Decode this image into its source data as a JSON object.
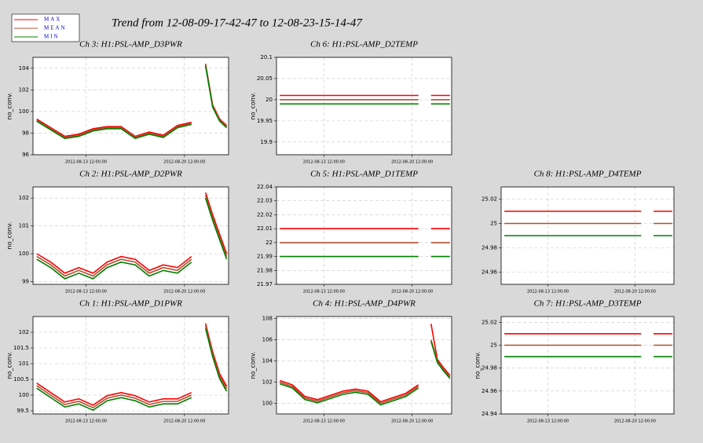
{
  "title": "Trend from 12-08-09-17-42-47 to 12-08-23-15-14-47",
  "chart_data": [
    {
      "type": "line",
      "title": "Ch 3: H1:PSL-AMP_D3PWR",
      "ylabel": "no_conv.",
      "x": [
        "2012-08-10 00:00:00",
        "2012-08-11 00:00:00",
        "2012-08-12 00:00:00",
        "2012-08-13 00:00:00",
        "2012-08-14 00:00:00",
        "2012-08-15 00:00:00",
        "2012-08-16 00:00:00",
        "2012-08-17 00:00:00",
        "2012-08-18 00:00:00",
        "2012-08-19 00:00:00",
        "2012-08-20 00:00:00",
        "2012-08-21 00:00:00",
        "2012-08-21 12:00:00",
        "2012-08-22 00:00:00",
        "2012-08-22 12:00:00",
        "2012-08-23 00:00:00",
        "2012-08-23 12:00:00"
      ],
      "xlim": [
        "2012-08-09 17:42:47",
        "2012-08-23 15:14:47"
      ],
      "xticks": [
        "2012-08-13 12:00:00",
        "2012-08-20 12:00:00"
      ],
      "ylim": [
        96,
        105
      ],
      "yticks": [
        96,
        98,
        100,
        102,
        104
      ],
      "series": [
        {
          "name": "MAX",
          "color": "#ff0000",
          "values": [
            99.3,
            98.5,
            97.7,
            97.9,
            98.4,
            98.6,
            98.6,
            97.7,
            98.1,
            97.8,
            98.7,
            99.0,
            null,
            104.4,
            100.6,
            99.3,
            98.7
          ]
        },
        {
          "name": "MEAN",
          "color": "#b05030",
          "values": [
            99.2,
            98.4,
            97.6,
            97.8,
            98.3,
            98.5,
            98.5,
            97.6,
            98.0,
            97.7,
            98.6,
            98.9,
            null,
            104.3,
            100.5,
            99.2,
            98.6
          ]
        },
        {
          "name": "MIN",
          "color": "#008000",
          "values": [
            99.1,
            98.3,
            97.5,
            97.7,
            98.2,
            98.4,
            98.4,
            97.5,
            97.9,
            97.6,
            98.5,
            98.8,
            null,
            104.2,
            100.4,
            99.1,
            98.5
          ]
        }
      ]
    },
    {
      "type": "line",
      "title": "Ch 6: H1:PSL-AMP_D2TEMP",
      "ylabel": "no_conv.",
      "x": [
        "2012-08-10 00:00:00",
        "2012-08-11 00:00:00",
        "2012-08-12 00:00:00",
        "2012-08-13 00:00:00",
        "2012-08-14 00:00:00",
        "2012-08-15 00:00:00",
        "2012-08-16 00:00:00",
        "2012-08-17 00:00:00",
        "2012-08-18 00:00:00",
        "2012-08-19 00:00:00",
        "2012-08-20 00:00:00",
        "2012-08-21 00:00:00",
        "2012-08-21 12:00:00",
        "2012-08-22 00:00:00",
        "2012-08-22 12:00:00",
        "2012-08-23 00:00:00",
        "2012-08-23 12:00:00"
      ],
      "xlim": [
        "2012-08-09 17:42:47",
        "2012-08-23 15:14:47"
      ],
      "xticks": [
        "2012-08-13 12:00:00",
        "2012-08-20 12:00:00"
      ],
      "ylim": [
        19.87,
        20.1
      ],
      "yticks": [
        19.9,
        19.95,
        20,
        20.05,
        20.1
      ],
      "series": [
        {
          "name": "MAX",
          "color": "#ff0000",
          "values": [
            20.01,
            20.01,
            20.01,
            20.01,
            20.01,
            20.01,
            20.01,
            20.01,
            20.01,
            20.01,
            20.01,
            20.01,
            null,
            20.01,
            20.01,
            20.01,
            20.01
          ]
        },
        {
          "name": "MEAN",
          "color": "#b05030",
          "values": [
            20,
            20,
            20,
            20,
            20,
            20,
            20,
            20,
            20,
            20,
            20,
            20,
            null,
            20,
            20,
            20,
            20
          ]
        },
        {
          "name": "MIN",
          "color": "#008000",
          "values": [
            19.99,
            19.99,
            19.99,
            19.99,
            19.99,
            19.99,
            19.99,
            19.99,
            19.99,
            19.99,
            19.99,
            19.99,
            null,
            19.99,
            19.99,
            19.99,
            19.99
          ]
        }
      ]
    },
    {
      "type": "line",
      "title": "Ch 2: H1:PSL-AMP_D2PWR",
      "ylabel": "no_conv.",
      "x": [
        "2012-08-10 00:00:00",
        "2012-08-11 00:00:00",
        "2012-08-12 00:00:00",
        "2012-08-13 00:00:00",
        "2012-08-14 00:00:00",
        "2012-08-15 00:00:00",
        "2012-08-16 00:00:00",
        "2012-08-17 00:00:00",
        "2012-08-18 00:00:00",
        "2012-08-19 00:00:00",
        "2012-08-20 00:00:00",
        "2012-08-21 00:00:00",
        "2012-08-21 12:00:00",
        "2012-08-22 00:00:00",
        "2012-08-22 12:00:00",
        "2012-08-23 00:00:00",
        "2012-08-23 12:00:00"
      ],
      "xlim": [
        "2012-08-09 17:42:47",
        "2012-08-23 15:14:47"
      ],
      "xticks": [
        "2012-08-13 12:00:00",
        "2012-08-20 12:00:00"
      ],
      "ylim": [
        98.9,
        102.4
      ],
      "yticks": [
        99,
        100,
        101,
        102
      ],
      "series": [
        {
          "name": "MAX",
          "color": "#ff0000",
          "values": [
            100.0,
            99.7,
            99.3,
            99.5,
            99.3,
            99.7,
            99.9,
            99.8,
            99.4,
            99.6,
            99.5,
            99.9,
            null,
            102.2,
            101.4,
            100.7,
            100.0
          ]
        },
        {
          "name": "MEAN",
          "color": "#b05030",
          "values": [
            99.9,
            99.6,
            99.2,
            99.4,
            99.2,
            99.6,
            99.8,
            99.7,
            99.3,
            99.5,
            99.4,
            99.8,
            null,
            102.1,
            101.3,
            100.6,
            99.9
          ]
        },
        {
          "name": "MIN",
          "color": "#008000",
          "values": [
            99.8,
            99.5,
            99.1,
            99.3,
            99.1,
            99.5,
            99.7,
            99.6,
            99.2,
            99.4,
            99.3,
            99.7,
            null,
            102.0,
            101.2,
            100.5,
            99.8
          ]
        }
      ]
    },
    {
      "type": "line",
      "title": "Ch 5: H1:PSL-AMP_D1TEMP",
      "x": [
        "2012-08-10 00:00:00",
        "2012-08-11 00:00:00",
        "2012-08-12 00:00:00",
        "2012-08-13 00:00:00",
        "2012-08-14 00:00:00",
        "2012-08-15 00:00:00",
        "2012-08-16 00:00:00",
        "2012-08-17 00:00:00",
        "2012-08-18 00:00:00",
        "2012-08-19 00:00:00",
        "2012-08-20 00:00:00",
        "2012-08-21 00:00:00",
        "2012-08-21 12:00:00",
        "2012-08-22 00:00:00",
        "2012-08-22 12:00:00",
        "2012-08-23 00:00:00",
        "2012-08-23 12:00:00"
      ],
      "xlim": [
        "2012-08-09 17:42:47",
        "2012-08-23 15:14:47"
      ],
      "xticks": [
        "2012-08-13 12:00:00",
        "2012-08-20 12:00:00"
      ],
      "ylim": [
        21.97,
        22.04
      ],
      "yticks": [
        21.97,
        21.98,
        21.99,
        22,
        22.01,
        22.02,
        22.03,
        22.04
      ],
      "series": [
        {
          "name": "MAX",
          "color": "#ff0000",
          "values": [
            22.01,
            22.01,
            22.01,
            22.01,
            22.01,
            22.01,
            22.01,
            22.01,
            22.01,
            22.01,
            22.01,
            22.01,
            null,
            22.01,
            22.01,
            22.01,
            22.01
          ]
        },
        {
          "name": "MEAN",
          "color": "#b05030",
          "values": [
            22,
            22,
            22,
            22,
            22,
            22,
            22,
            22,
            22,
            22,
            22,
            22,
            null,
            22,
            22,
            22,
            22
          ]
        },
        {
          "name": "MIN",
          "color": "#008000",
          "values": [
            21.99,
            21.99,
            21.99,
            21.99,
            21.99,
            21.99,
            21.99,
            21.99,
            21.99,
            21.99,
            21.99,
            21.99,
            null,
            21.99,
            21.99,
            21.99,
            21.99
          ]
        }
      ]
    },
    {
      "type": "line",
      "title": "Ch 8: H1:PSL-AMP_D4TEMP",
      "x": [
        "2012-08-10 00:00:00",
        "2012-08-11 00:00:00",
        "2012-08-12 00:00:00",
        "2012-08-13 00:00:00",
        "2012-08-14 00:00:00",
        "2012-08-15 00:00:00",
        "2012-08-16 00:00:00",
        "2012-08-17 00:00:00",
        "2012-08-18 00:00:00",
        "2012-08-19 00:00:00",
        "2012-08-20 00:00:00",
        "2012-08-21 00:00:00",
        "2012-08-21 12:00:00",
        "2012-08-22 00:00:00",
        "2012-08-22 12:00:00",
        "2012-08-23 00:00:00",
        "2012-08-23 12:00:00"
      ],
      "xlim": [
        "2012-08-09 17:42:47",
        "2012-08-23 15:14:47"
      ],
      "xticks": [
        "2012-08-13 12:00:00",
        "2012-08-20 12:00:00"
      ],
      "ylim": [
        24.95,
        25.03
      ],
      "yticks": [
        24.96,
        24.98,
        25,
        25.02
      ],
      "series": [
        {
          "name": "MAX",
          "color": "#ff0000",
          "values": [
            25.01,
            25.01,
            25.01,
            25.01,
            25.01,
            25.01,
            25.01,
            25.01,
            25.01,
            25.01,
            25.01,
            25.01,
            null,
            25.01,
            25.01,
            25.01,
            25.01
          ]
        },
        {
          "name": "MEAN",
          "color": "#b05030",
          "values": [
            25,
            25,
            25,
            25,
            25,
            25,
            25,
            25,
            25,
            25,
            25,
            25,
            null,
            25,
            25,
            25,
            25
          ]
        },
        {
          "name": "MIN",
          "color": "#008000",
          "values": [
            24.99,
            24.99,
            24.99,
            24.99,
            24.99,
            24.99,
            24.99,
            24.99,
            24.99,
            24.99,
            24.99,
            24.99,
            null,
            24.99,
            24.99,
            24.99,
            24.99
          ]
        }
      ]
    },
    {
      "type": "line",
      "title": "Ch 1: H1:PSL-AMP_D1PWR",
      "ylabel": "no_conv.",
      "x": [
        "2012-08-10 00:00:00",
        "2012-08-11 00:00:00",
        "2012-08-12 00:00:00",
        "2012-08-13 00:00:00",
        "2012-08-14 00:00:00",
        "2012-08-15 00:00:00",
        "2012-08-16 00:00:00",
        "2012-08-17 00:00:00",
        "2012-08-18 00:00:00",
        "2012-08-19 00:00:00",
        "2012-08-20 00:00:00",
        "2012-08-21 00:00:00",
        "2012-08-21 12:00:00",
        "2012-08-22 00:00:00",
        "2012-08-22 12:00:00",
        "2012-08-23 00:00:00",
        "2012-08-23 12:00:00"
      ],
      "xlim": [
        "2012-08-09 17:42:47",
        "2012-08-23 15:14:47"
      ],
      "xticks": [
        "2012-08-13 12:00:00",
        "2012-08-20 12:00:00"
      ],
      "ylim": [
        99.4,
        102.5
      ],
      "yticks": [
        99.5,
        100,
        100.5,
        101,
        101.5,
        102
      ],
      "series": [
        {
          "name": "MAX",
          "color": "#ff0000",
          "values": [
            100.38,
            100.08,
            99.78,
            99.88,
            99.68,
            99.98,
            100.08,
            99.98,
            99.78,
            99.88,
            99.88,
            100.08,
            null,
            102.28,
            101.38,
            100.68,
            100.28
          ]
        },
        {
          "name": "MEAN",
          "color": "#b05030",
          "values": [
            100.3,
            100.0,
            99.7,
            99.8,
            99.6,
            99.9,
            100.0,
            99.9,
            99.7,
            99.8,
            99.8,
            100.0,
            null,
            102.2,
            101.3,
            100.6,
            100.2
          ]
        },
        {
          "name": "MIN",
          "color": "#008000",
          "values": [
            100.22,
            99.92,
            99.62,
            99.72,
            99.52,
            99.82,
            99.92,
            99.82,
            99.62,
            99.72,
            99.72,
            99.92,
            null,
            102.12,
            101.22,
            100.52,
            100.12
          ]
        }
      ]
    },
    {
      "type": "line",
      "title": "Ch 4: H1:PSL-AMP_D4PWR",
      "ylabel": "no_conv.",
      "x": [
        "2012-08-10 00:00:00",
        "2012-08-11 00:00:00",
        "2012-08-12 00:00:00",
        "2012-08-13 00:00:00",
        "2012-08-14 00:00:00",
        "2012-08-15 00:00:00",
        "2012-08-16 00:00:00",
        "2012-08-17 00:00:00",
        "2012-08-18 00:00:00",
        "2012-08-19 00:00:00",
        "2012-08-20 00:00:00",
        "2012-08-21 00:00:00",
        "2012-08-21 12:00:00",
        "2012-08-22 00:00:00",
        "2012-08-22 12:00:00",
        "2012-08-23 00:00:00",
        "2012-08-23 12:00:00"
      ],
      "xlim": [
        "2012-08-09 17:42:47",
        "2012-08-23 15:14:47"
      ],
      "xticks": [
        "2012-08-13 12:00:00",
        "2012-08-20 12:00:00"
      ],
      "ylim": [
        99,
        108.2
      ],
      "yticks": [
        100,
        102,
        104,
        106,
        108
      ],
      "series": [
        {
          "name": "MAX",
          "color": "#ff0000",
          "values": [
            102.15,
            101.75,
            100.65,
            100.35,
            100.75,
            101.15,
            101.35,
            101.15,
            100.15,
            100.55,
            100.95,
            101.75,
            null,
            107.5,
            104.15,
            103.35,
            102.65
          ]
        },
        {
          "name": "MEAN",
          "color": "#b05030",
          "values": [
            102.0,
            101.6,
            100.5,
            100.2,
            100.6,
            101.0,
            101.2,
            101.0,
            100.0,
            100.4,
            100.8,
            101.6,
            null,
            106.0,
            104.0,
            103.2,
            102.5
          ]
        },
        {
          "name": "MIN",
          "color": "#008000",
          "values": [
            101.85,
            101.45,
            100.35,
            100.05,
            100.45,
            100.85,
            101.05,
            100.85,
            99.85,
            100.25,
            100.65,
            101.45,
            null,
            105.85,
            103.85,
            103.05,
            102.35
          ]
        }
      ]
    },
    {
      "type": "line",
      "title": "Ch 7: H1:PSL-AMP_D3TEMP",
      "ylabel": "no_conv.",
      "x": [
        "2012-08-10 00:00:00",
        "2012-08-11 00:00:00",
        "2012-08-12 00:00:00",
        "2012-08-13 00:00:00",
        "2012-08-14 00:00:00",
        "2012-08-15 00:00:00",
        "2012-08-16 00:00:00",
        "2012-08-17 00:00:00",
        "2012-08-18 00:00:00",
        "2012-08-19 00:00:00",
        "2012-08-20 00:00:00",
        "2012-08-21 00:00:00",
        "2012-08-21 12:00:00",
        "2012-08-22 00:00:00",
        "2012-08-22 12:00:00",
        "2012-08-23 00:00:00",
        "2012-08-23 12:00:00"
      ],
      "xlim": [
        "2012-08-09 17:42:47",
        "2012-08-23 15:14:47"
      ],
      "xticks": [
        "2012-08-13 12:00:00",
        "2012-08-20 12:00:00"
      ],
      "ylim": [
        24.94,
        25.025
      ],
      "yticks": [
        24.94,
        24.96,
        24.98,
        25,
        25.02
      ],
      "series": [
        {
          "name": "MAX",
          "color": "#ff0000",
          "values": [
            25.01,
            25.01,
            25.01,
            25.01,
            25.01,
            25.01,
            25.01,
            25.01,
            25.01,
            25.01,
            25.01,
            25.01,
            null,
            25.01,
            25.01,
            25.01,
            25.01
          ]
        },
        {
          "name": "MEAN",
          "color": "#b05030",
          "values": [
            25,
            25,
            25,
            25,
            25,
            25,
            25,
            25,
            25,
            25,
            25,
            25,
            null,
            25,
            25,
            25,
            25
          ]
        },
        {
          "name": "MIN",
          "color": "#008000",
          "values": [
            24.99,
            24.99,
            24.99,
            24.99,
            24.99,
            24.99,
            24.99,
            24.99,
            24.99,
            24.99,
            24.99,
            24.99,
            null,
            24.99,
            24.99,
            24.99,
            24.99
          ]
        }
      ]
    }
  ]
}
